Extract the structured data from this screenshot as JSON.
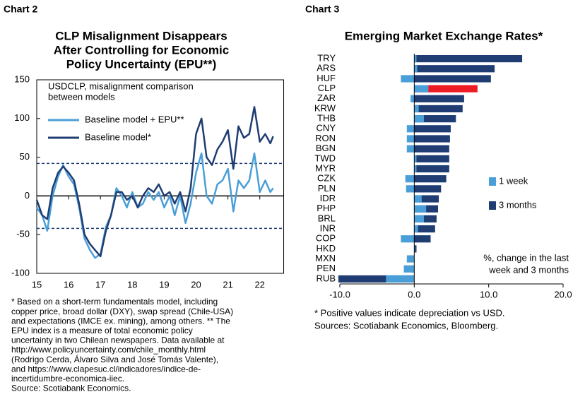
{
  "chart_data": [
    {
      "type": "line",
      "header": "Chart 2",
      "title": [
        "CLP Misalignment Disappears",
        "After Controlling for Economic",
        "Policy Uncertainty (EPU**)"
      ],
      "subtitle": [
        "USDCLP, misalignment comparison",
        "between models"
      ],
      "x": [
        15.0,
        15.17,
        15.33,
        15.5,
        15.67,
        15.83,
        16.0,
        16.17,
        16.33,
        16.5,
        16.67,
        16.83,
        17.0,
        17.17,
        17.33,
        17.5,
        17.67,
        17.83,
        18.0,
        18.17,
        18.33,
        18.5,
        18.67,
        18.83,
        19.0,
        19.17,
        19.33,
        19.5,
        19.67,
        19.83,
        20.0,
        20.17,
        20.33,
        20.5,
        20.67,
        20.83,
        21.0,
        21.17,
        21.33,
        21.5,
        21.67,
        21.83,
        22.0,
        22.17,
        22.33,
        22.42
      ],
      "series": [
        {
          "name": "Baseline model + EPU**",
          "color": "#4a9fd8",
          "values": [
            -15,
            -25,
            -45,
            0,
            25,
            40,
            25,
            15,
            -15,
            -55,
            -70,
            -80,
            -75,
            -40,
            -25,
            10,
            0,
            -15,
            5,
            -15,
            -10,
            5,
            -5,
            5,
            -15,
            0,
            -25,
            0,
            -35,
            -10,
            30,
            55,
            0,
            -10,
            15,
            20,
            35,
            -20,
            20,
            10,
            20,
            55,
            5,
            20,
            5,
            10
          ]
        },
        {
          "name": "Baseline model*",
          "color": "#1f3d73",
          "values": [
            -5,
            -25,
            -30,
            10,
            30,
            38,
            30,
            20,
            -10,
            -50,
            -62,
            -70,
            -78,
            -45,
            -25,
            5,
            5,
            -5,
            0,
            -15,
            0,
            10,
            5,
            15,
            0,
            5,
            -10,
            5,
            -20,
            10,
            80,
            100,
            50,
            40,
            60,
            70,
            85,
            35,
            90,
            75,
            80,
            115,
            70,
            80,
            68,
            77
          ]
        }
      ],
      "reference_lines": [
        42,
        -42
      ],
      "reference_color": "#1f3d73",
      "xlim": [
        15,
        22.75
      ],
      "xticks": [
        15,
        16,
        17,
        18,
        19,
        20,
        21,
        22
      ],
      "ylim": [
        -100,
        150
      ],
      "yticks": [
        -100,
        -50,
        0,
        50,
        100,
        150
      ],
      "footnote": [
        "* Based on a short-term fundamentals model, including",
        "copper price, broad dollar (DXY), swap spread (Chile-USA)",
        "and expectations (IMCE ex. mining), among others. ** The",
        "EPU index is a measure of total economic policy",
        "uncertainty in two Chilean newspapers. Data available at",
        "http://www.policyuncertainty.com/chile_monthly.html",
        "(Rodrigo Cerda, Álvaro Silva and José Tomás Valente),",
        "and https://www.clapesuc.cl/indicadores/indice-de-",
        "incertidumbre-economica-iiec.",
        "Source: Scotiabank Economics."
      ]
    },
    {
      "type": "hbar",
      "header": "Chart 3",
      "title": [
        "Emerging Market Exchange Rates*"
      ],
      "categories": [
        "TRY",
        "ARS",
        "HUF",
        "CLP",
        "ZAR",
        "KRW",
        "THB",
        "CNY",
        "RON",
        "BGN",
        "TWD",
        "MYR",
        "CZK",
        "PLN",
        "IDR",
        "PHP",
        "BRL",
        "INR",
        "COP",
        "HKD",
        "MXN",
        "PEN",
        "RUB"
      ],
      "series": [
        {
          "name": "3 months",
          "color": "#1f3d73",
          "values": [
            14.5,
            10.8,
            10.3,
            8.5,
            6.7,
            6.5,
            5.6,
            4.9,
            4.8,
            4.7,
            4.7,
            4.7,
            4.3,
            3.6,
            3.3,
            3.2,
            3.0,
            2.8,
            2.2,
            0.3,
            0.0,
            -0.3,
            -10.2
          ]
        },
        {
          "name": "1 week",
          "color": "#4a9fd8",
          "values": [
            0.3,
            0.4,
            -1.8,
            1.9,
            -0.5,
            0.6,
            1.3,
            -1.0,
            -1.0,
            -1.0,
            0.3,
            0.3,
            -1.2,
            -1.1,
            1.0,
            1.6,
            1.3,
            0.5,
            -1.8,
            0.1,
            -1.0,
            -1.4,
            -3.8
          ]
        }
      ],
      "highlight": {
        "category": "CLP",
        "color": "#ed1c24"
      },
      "xlim": [
        -10,
        20
      ],
      "xticks": [
        {
          "value": -10,
          "label": "-10.0"
        },
        {
          "value": 0,
          "label": "0.0"
        },
        {
          "value": 10,
          "label": "10.0"
        },
        {
          "value": 20,
          "label": "20.0"
        }
      ],
      "note": [
        "%, change in the last",
        "week and 3 months"
      ],
      "footnote": [
        "* Positive values indicate depreciation vs USD.",
        "Sources: Scotiabank Economics, Bloomberg."
      ]
    }
  ]
}
